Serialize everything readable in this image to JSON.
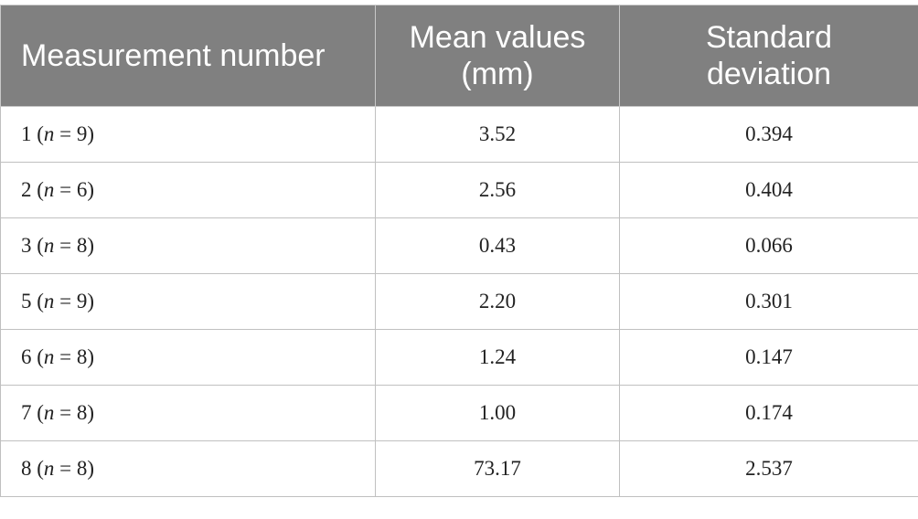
{
  "table": {
    "header": [
      "Measurement number",
      "Mean values (mm)",
      "Standard deviation"
    ],
    "rows": [
      [
        "1 (n = 9)",
        "3.52",
        "0.394"
      ],
      [
        "2 (n = 6)",
        "2.56",
        "0.404"
      ],
      [
        "3 (n = 8)",
        "0.43",
        "0.066"
      ],
      [
        "5 (n = 9)",
        "2.20",
        "0.301"
      ],
      [
        "6 (n = 8)",
        "1.24",
        "0.147"
      ],
      [
        "7 (n = 8)",
        "1.00",
        "0.174"
      ],
      [
        "8 (n = 8)",
        "73.17",
        "2.537"
      ]
    ]
  }
}
